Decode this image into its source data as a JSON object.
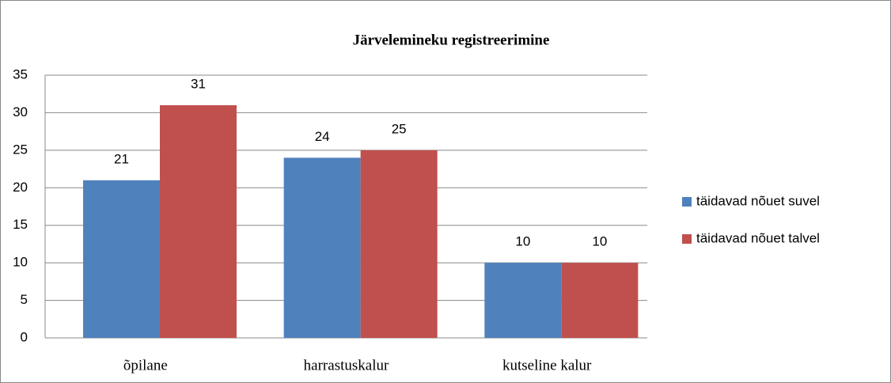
{
  "chart_data": {
    "type": "bar",
    "title": "Järvelemineku registreerimine",
    "categories": [
      "õpilane",
      "harrastuskalur",
      "kutseline kalur"
    ],
    "series": [
      {
        "name": "täidavad nõuet suvel",
        "color": "#4f81bd",
        "values": [
          21,
          24,
          10
        ]
      },
      {
        "name": "täidavad nõuet talvel",
        "color": "#c0504d",
        "values": [
          31,
          25,
          10
        ]
      }
    ],
    "ylim": [
      0,
      35
    ],
    "yticks": [
      0,
      5,
      10,
      15,
      20,
      25,
      30,
      35
    ],
    "grid": true,
    "legend": "right"
  }
}
